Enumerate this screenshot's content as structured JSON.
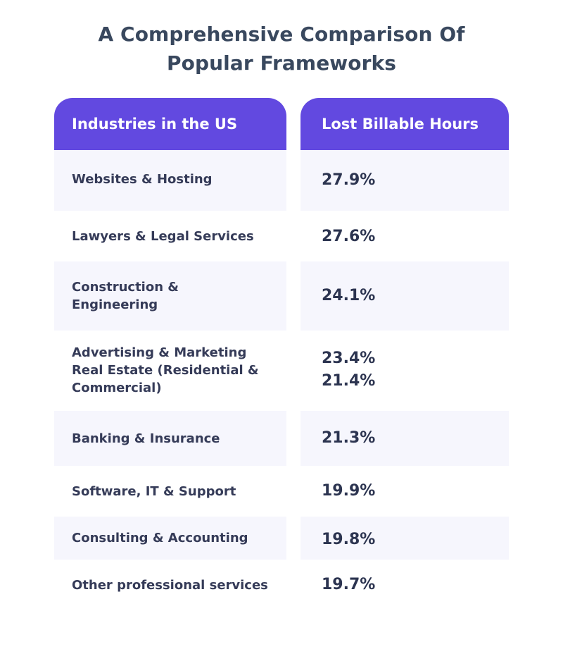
{
  "title": {
    "line1": "A Comprehensive Comparison Of",
    "line2": "Popular Frameworks"
  },
  "colors": {
    "header_bg": "#6249e0",
    "header_text": "#ffffff",
    "stripe_bg": "#f6f6fd",
    "title_text": "#39485e",
    "body_text": "#2c3450"
  },
  "chart_data": {
    "type": "table",
    "columns": [
      "Industries in the US",
      "Lost Billable Hours"
    ],
    "rows": [
      {
        "industry": [
          "Websites & Hosting"
        ],
        "value": [
          "27.9%"
        ]
      },
      {
        "industry": [
          "Lawyers & Legal Services"
        ],
        "value": [
          "27.6%"
        ]
      },
      {
        "industry": [
          "Construction &",
          "Engineering"
        ],
        "value": [
          "24.1%"
        ]
      },
      {
        "industry": [
          "Advertising & Marketing",
          "Real Estate (Residential &",
          "Commercial)"
        ],
        "value": [
          "23.4%",
          "21.4%"
        ]
      },
      {
        "industry": [
          "Banking & Insurance"
        ],
        "value": [
          "21.3%"
        ]
      },
      {
        "industry": [
          "Software, IT & Support"
        ],
        "value": [
          "19.9%"
        ]
      },
      {
        "industry": [
          "Consulting & Accounting"
        ],
        "value": [
          "19.8%"
        ]
      },
      {
        "industry": [
          "Other professional services"
        ],
        "value": [
          "19.7%"
        ]
      }
    ]
  }
}
